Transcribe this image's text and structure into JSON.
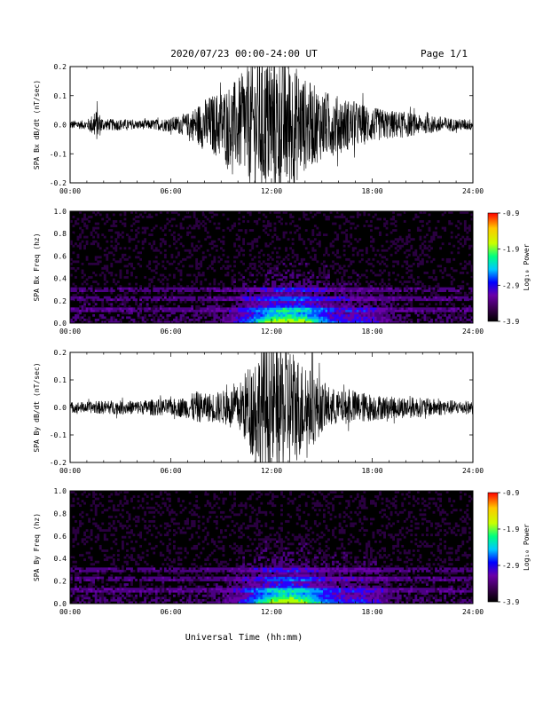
{
  "header": {
    "title": "2020/07/23  00:00-24:00 UT",
    "page": "Page 1/1"
  },
  "footer": {
    "xlabel": "Universal Time (hh:mm)"
  },
  "colors": {
    "trace": "#000000",
    "spectrogram_background": "#000000",
    "colorbar_stops": [
      "#000000",
      "#3a0050",
      "#6a00a8",
      "#0000ff",
      "#00c8ff",
      "#00ff80",
      "#c8ff00",
      "#ffc800",
      "#ff0000"
    ]
  },
  "chart_data": [
    {
      "type": "line",
      "panel": "bx-timeseries",
      "ylabel": "SPA Bx dB/dt (nT/sec)",
      "x_ticks": [
        "00:00",
        "06:00",
        "12:00",
        "18:00",
        "24:00"
      ],
      "y_ticks": [
        "0.2",
        "0.1",
        "0.0",
        "-0.1",
        "-0.2"
      ],
      "xlim_hours": [
        0,
        24
      ],
      "ylim": [
        -0.2,
        0.2
      ],
      "envelope": {
        "hours": [
          0,
          1,
          1.6,
          2,
          3,
          4,
          5,
          6,
          7,
          8,
          9,
          10,
          10.5,
          11,
          11.5,
          12,
          12.5,
          13,
          13.5,
          14,
          15,
          16,
          17,
          18,
          19,
          20,
          21,
          22,
          23,
          24
        ],
        "amplitude": [
          0.015,
          0.015,
          0.055,
          0.02,
          0.02,
          0.015,
          0.018,
          0.025,
          0.04,
          0.09,
          0.12,
          0.16,
          0.2,
          0.22,
          0.24,
          0.24,
          0.24,
          0.23,
          0.2,
          0.16,
          0.12,
          0.1,
          0.08,
          0.06,
          0.05,
          0.045,
          0.03,
          0.03,
          0.02,
          0.02
        ]
      }
    },
    {
      "type": "heatmap",
      "panel": "bx-spectrogram",
      "ylabel": "SPA Bx Freq (hz)",
      "x_ticks": [
        "00:00",
        "06:00",
        "12:00",
        "18:00",
        "24:00"
      ],
      "y_ticks": [
        "1.0",
        "0.8",
        "0.6",
        "0.4",
        "0.2",
        "0.0"
      ],
      "ylim": [
        0,
        1.0
      ],
      "colorbar": {
        "label": "Log₁₀ Power",
        "ticks": [
          "-0.9",
          "-1.9",
          "-2.9",
          "-3.9"
        ],
        "range": [
          -3.9,
          -0.9
        ]
      },
      "bands_hz": [
        0.3,
        0.22,
        0.12
      ]
    },
    {
      "type": "line",
      "panel": "by-timeseries",
      "ylabel": "SPA By dB/dt (nT/sec)",
      "x_ticks": [
        "00:00",
        "06:00",
        "12:00",
        "18:00",
        "24:00"
      ],
      "y_ticks": [
        "0.2",
        "0.1",
        "0.0",
        "-0.1",
        "-0.2"
      ],
      "xlim_hours": [
        0,
        24
      ],
      "ylim": [
        -0.2,
        0.2
      ],
      "envelope": {
        "hours": [
          0,
          1,
          2,
          3,
          4,
          5,
          6,
          7,
          7.5,
          8,
          9,
          10,
          10.5,
          11,
          11.5,
          12,
          12.5,
          13,
          13.5,
          14,
          14.5,
          15,
          16,
          17,
          18,
          19,
          20,
          21,
          22,
          23,
          24
        ],
        "amplitude": [
          0.02,
          0.02,
          0.025,
          0.025,
          0.025,
          0.03,
          0.03,
          0.04,
          0.06,
          0.05,
          0.06,
          0.08,
          0.14,
          0.2,
          0.24,
          0.24,
          0.24,
          0.24,
          0.2,
          0.15,
          0.14,
          0.09,
          0.06,
          0.06,
          0.05,
          0.04,
          0.04,
          0.035,
          0.03,
          0.025,
          0.025
        ]
      }
    },
    {
      "type": "heatmap",
      "panel": "by-spectrogram",
      "ylabel": "SPA By Freq (hz)",
      "x_ticks": [
        "00:00",
        "06:00",
        "12:00",
        "18:00",
        "24:00"
      ],
      "y_ticks": [
        "1.0",
        "0.8",
        "0.6",
        "0.4",
        "0.2",
        "0.0"
      ],
      "ylim": [
        0,
        1.0
      ],
      "colorbar": {
        "label": "Log₁₀ Power",
        "ticks": [
          "-0.9",
          "-1.9",
          "-2.9",
          "-3.9"
        ],
        "range": [
          -3.9,
          -0.9
        ]
      },
      "bands_hz": [
        0.3,
        0.22,
        0.12
      ]
    }
  ]
}
